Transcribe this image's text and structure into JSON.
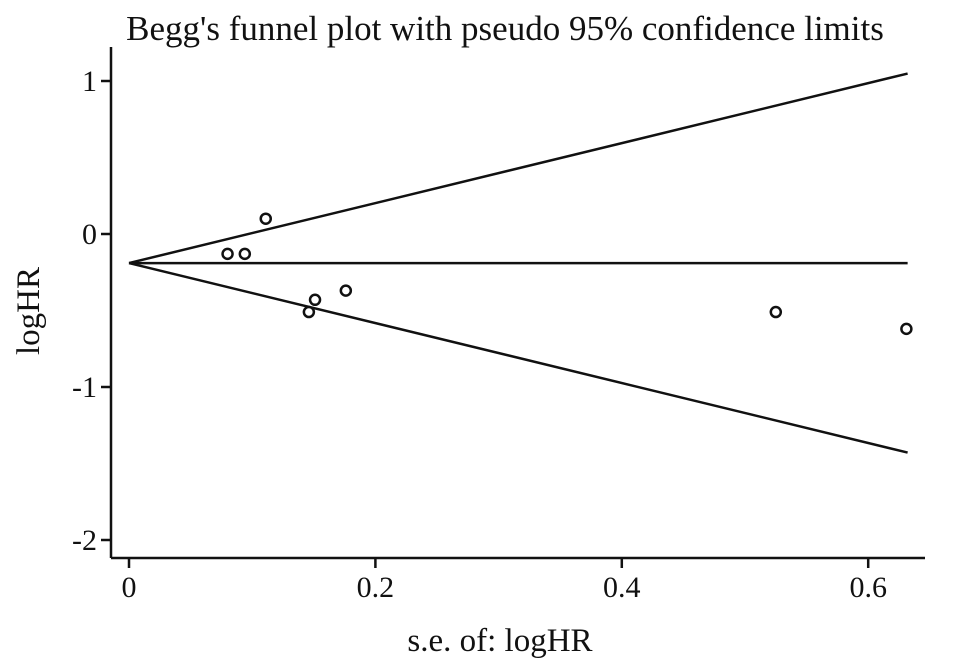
{
  "chart_data": {
    "type": "scatter",
    "title": "Begg's funnel plot with pseudo 95% confidence limits",
    "xlabel": "s.e. of: logHR",
    "ylabel": "logHR",
    "xlim": [
      0,
      0.65
    ],
    "ylim": [
      -2.1,
      1.2
    ],
    "x_ticks": [
      {
        "value": 0,
        "label": "0"
      },
      {
        "value": 0.2,
        "label": "0.2"
      },
      {
        "value": 0.4,
        "label": "0.4"
      },
      {
        "value": 0.6,
        "label": "0.6"
      }
    ],
    "y_ticks": [
      {
        "value": 1,
        "label": "1"
      },
      {
        "value": 0,
        "label": "0"
      },
      {
        "value": -1,
        "label": "-1"
      },
      {
        "value": -2,
        "label": "-2"
      }
    ],
    "pooled_estimate": -0.19,
    "pseudo_ci_multiplier": 1.96,
    "se_max": 0.632,
    "grid": false,
    "legend": "none",
    "points": [
      {
        "x": 0.08,
        "y": -0.13
      },
      {
        "x": 0.094,
        "y": -0.13
      },
      {
        "x": 0.111,
        "y": 0.1
      },
      {
        "x": 0.146,
        "y": -0.51
      },
      {
        "x": 0.151,
        "y": -0.43
      },
      {
        "x": 0.176,
        "y": -0.37
      },
      {
        "x": 0.525,
        "y": -0.51
      },
      {
        "x": 0.631,
        "y": -0.62
      }
    ],
    "colors": {
      "ink": "#111111",
      "background": "#ffffff"
    }
  }
}
